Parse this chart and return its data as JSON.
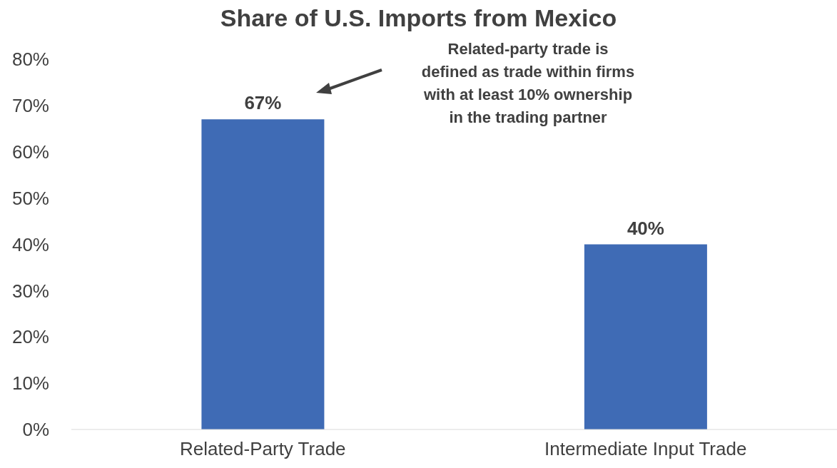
{
  "chart_data": {
    "type": "bar",
    "title": "Share of U.S. Imports from Mexico",
    "categories": [
      "Related-Party Trade",
      "Intermediate Input Trade"
    ],
    "values": [
      67,
      40
    ],
    "color": "#3f6bb5",
    "value_labels": [
      "67%",
      "40%"
    ],
    "ylim": [
      0,
      80
    ],
    "yticks": [
      {
        "value": 0,
        "label": "0%"
      },
      {
        "value": 10,
        "label": "10%"
      },
      {
        "value": 20,
        "label": "20%"
      },
      {
        "value": 30,
        "label": "30%"
      },
      {
        "value": 40,
        "label": "40%"
      },
      {
        "value": 50,
        "label": "50%"
      },
      {
        "value": 60,
        "label": "60%"
      },
      {
        "value": 70,
        "label": "70%"
      },
      {
        "value": 80,
        "label": "80%"
      }
    ],
    "grid": false,
    "annotations": [
      "Related-party trade is\ndefined as trade within firms\nwith at least 10% ownership\nin the trading partner"
    ]
  }
}
